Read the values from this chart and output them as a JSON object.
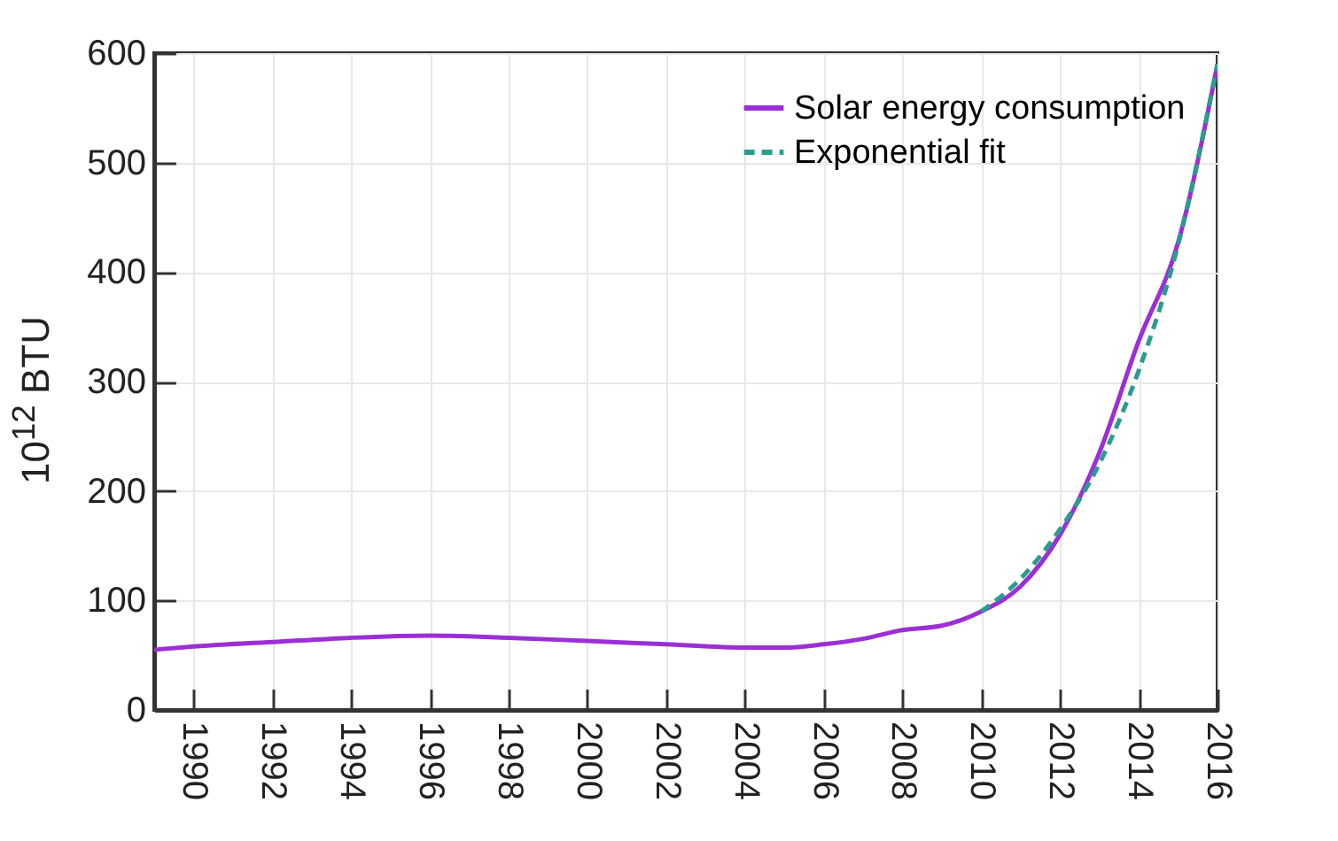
{
  "chart_data": {
    "type": "line",
    "ylabel": "10$^{12}$ BTU",
    "xlim": [
      1989,
      2016
    ],
    "ylim": [
      0,
      600
    ],
    "xticks": [
      1990,
      1992,
      1994,
      1996,
      1998,
      2000,
      2002,
      2004,
      2006,
      2008,
      2010,
      2012,
      2014,
      2016
    ],
    "yticks": [
      0,
      100,
      200,
      300,
      400,
      500,
      600
    ],
    "grid": true,
    "legend": "top right",
    "series": [
      {
        "name": "Solar energy consumption",
        "color": "#9b2fd6",
        "line_style": "solid",
        "x": [
          1989,
          1990,
          1992,
          1994,
          1996,
          1998,
          2000,
          2002,
          2004,
          2005,
          2006,
          2007,
          2008,
          2009,
          2010,
          2011,
          2012,
          2013,
          2014,
          2015,
          2016
        ],
        "values": [
          55,
          58,
          62,
          66,
          68,
          66,
          63,
          60,
          57,
          57,
          60,
          65,
          73,
          77,
          90,
          113,
          160,
          235,
          337,
          427,
          590
        ]
      },
      {
        "name": "Exponential fit",
        "color": "#2a9d8f",
        "line_style": "dashed",
        "x": [
          2010,
          2011,
          2012,
          2013,
          2014,
          2015,
          2016
        ],
        "values": [
          90,
          120,
          165,
          225,
          310,
          425,
          590
        ]
      }
    ]
  }
}
